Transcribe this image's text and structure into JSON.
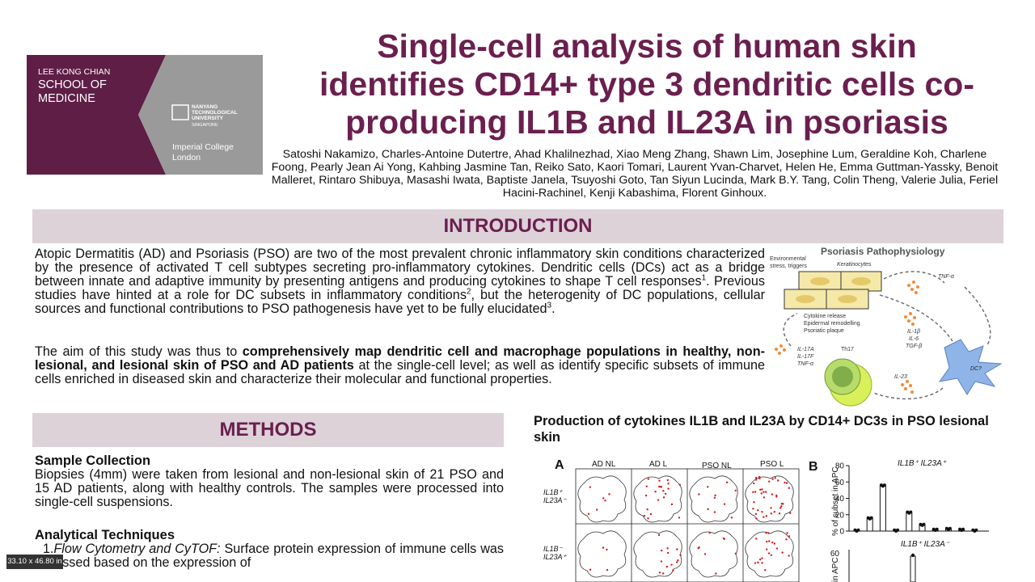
{
  "logo": {
    "school_line1": "LEE KONG CHIAN",
    "school_line2": "SCHOOL OF",
    "school_line3": "MEDICINE",
    "ntu_line1": "NANYANG",
    "ntu_line2": "TECHNOLOGICAL",
    "ntu_line3": "UNIVERSITY",
    "ntu_line4": "SINGAPORE",
    "imperial_line1": "Imperial College",
    "imperial_line2": "London",
    "colors": {
      "maroon": "#5e1e46",
      "grey": "#9a9a9a"
    }
  },
  "title": {
    "line1": "Single-cell analysis of human skin",
    "line2": "identifies CD14+ type 3 dendritic cells co-",
    "line3": "producing IL1B and IL23A in psoriasis"
  },
  "authors": "Satoshi Nakamizo, Charles-Antoine Dutertre, Ahad Khalilnezhad, Xiao Meng Zhang, Shawn Lim, Josephine Lum, Geraldine Koh, Charlene Foong, Pearly Jean Ai Yong, Kahbing Jasmine Tan, Reiko Sato, Kaori Tomari, Laurent Yvan-Charvet, Helen He, Emma Guttman-Yassky, Benoit Malleret, Rintaro Shibuya, Masashi Iwata, Baptiste Janela, Tsuyoshi Goto, Tan Siyun Lucinda, Mark B.Y. Tang, Colin Theng, Valerie Julia, Feriel Hacini-Rachinel, Kenji Kabashima, Florent Ginhoux.",
  "introduction": {
    "heading": "INTRODUCTION",
    "p1_a": "Atopic Dermatitis (AD) and Psoriasis (PSO) are two of the most prevalent chronic inflammatory skin conditions  characterized by the presence of activated T cell subtypes secreting pro-inflammatory cytokines. Dendritic cells (DCs) act as a bridge between innate and adaptive immunity by presenting antigens and producing cytokines to shape T cell responses",
    "p1_sup1": "1",
    "p1_b": ". Previous studies have hinted at a role for DC subsets in inflammatory conditions",
    "p1_sup2": "2",
    "p1_c": ", but the heterogenity of DC populations, cellular sources and functional contributions to PSO pathogenesis have yet to be fully elucidated",
    "p1_sup3": "3",
    "p1_d": ".",
    "p2_a": "The aim of this study was thus to ",
    "p2_bold": "comprehensively map dendritic cell and macrophage populations in healthy, non-lesional, and lesional skin of PSO and AD patients",
    "p2_b": " at the single-cell level; as well as identify specific subsets of immune cells enriched in diseased skin and characterize their molecular and functional properties."
  },
  "diagram": {
    "title": "Psoriasis Pathophysiology",
    "env_line1": "Environmental",
    "env_line2": "stress, triggers",
    "keratinocytes": "Keratinocytes",
    "tnf": "TNF-α",
    "cyt1": "Cytokine release",
    "cyt2": "Epidermal remodelling",
    "cyt3": "Psoriatic plaque",
    "il1b": "IL-1β",
    "il6": "IL-6",
    "tgfb": "TGF-β",
    "il17a": "IL-17A",
    "il17f": "IL-17F",
    "tnfa2": "TNF-α",
    "th17": "Th17",
    "dc": "DC?",
    "il23": "IL-23"
  },
  "methods": {
    "heading": "METHODS",
    "sample_heading": "Sample Collection",
    "sample_text": "Biopsies (4mm) were taken from lesional and non-lesional skin of 21 PSO and 15 AD patients, along with healthy controls. The samples were processed into single-cell suspensions.",
    "analytical_heading": "Analytical Techniques",
    "analytical_text_num": "1.",
    "analytical_text_italic": "Flow Cytometry and CyTOF:",
    "analytical_text_rest": " Surface protein expression of immune cells was assessed based on the expression of"
  },
  "results": {
    "title": "Production of cytokines IL1B and IL23A by CD14+ DC3s in PSO lesional skin",
    "panelA_label": "A",
    "panelA_cols": [
      "AD NL",
      "AD L",
      "PSO NL",
      "PSO L"
    ],
    "panelA_row1_l1": "IL1B⁺",
    "panelA_row1_l2": "IL23A⁻",
    "panelA_row2_l1": "IL1B⁻",
    "panelA_row2_l2": "IL23A⁺",
    "panelB_label": "B",
    "panelB_title1": "IL1B⁺ IL23A⁺",
    "panelB_title2": "IL1B⁺ IL23A⁻",
    "panelB_ylabel": "% of subset in APC",
    "panelB_ylabel2": "in APC"
  },
  "chart_data": {
    "type": "bar",
    "title": "IL1B⁺ IL23A⁺",
    "ylabel": "% of subset in APC",
    "ylim": [
      0,
      80
    ],
    "yticks": [
      0,
      20,
      40,
      60,
      80
    ],
    "values": [
      0,
      15,
      55,
      0,
      22,
      7,
      1,
      2,
      1,
      0
    ]
  },
  "badge": "33.10 x 46.80 in"
}
